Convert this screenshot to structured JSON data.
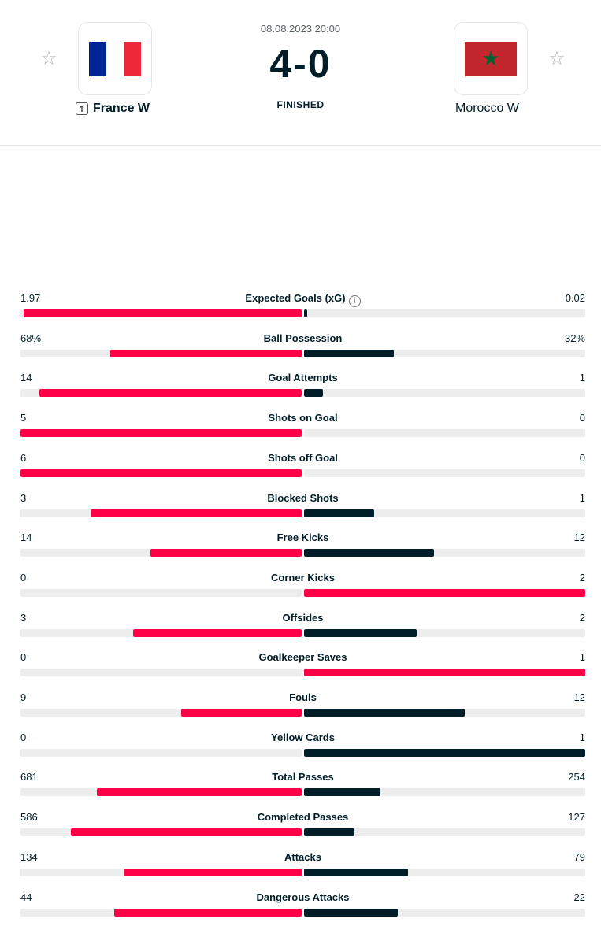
{
  "match": {
    "datetime": "08.08.2023 20:00",
    "score": "4-0",
    "status": "FINISHED",
    "home": {
      "name": "France W",
      "flag": "france-flag",
      "favorite_icon": "star-icon",
      "advance_icon": "arrow-up-icon"
    },
    "away": {
      "name": "Morocco W",
      "flag": "morocco-flag",
      "favorite_icon": "star-icon"
    }
  },
  "colors": {
    "winner": "#ff0046",
    "loser": "#001e28",
    "track": "#ededed"
  },
  "stats": [
    {
      "name": "Expected Goals (xG)",
      "home": "1.97",
      "away": "0.02",
      "info": true
    },
    {
      "name": "Ball Possession",
      "home": "68%",
      "away": "32%"
    },
    {
      "name": "Goal Attempts",
      "home": "14",
      "away": "1"
    },
    {
      "name": "Shots on Goal",
      "home": "5",
      "away": "0"
    },
    {
      "name": "Shots off Goal",
      "home": "6",
      "away": "0"
    },
    {
      "name": "Blocked Shots",
      "home": "3",
      "away": "1"
    },
    {
      "name": "Free Kicks",
      "home": "14",
      "away": "12"
    },
    {
      "name": "Corner Kicks",
      "home": "0",
      "away": "2"
    },
    {
      "name": "Offsides",
      "home": "3",
      "away": "2"
    },
    {
      "name": "Goalkeeper Saves",
      "home": "0",
      "away": "1"
    },
    {
      "name": "Fouls",
      "home": "9",
      "away": "12",
      "lower_is_better": true
    },
    {
      "name": "Yellow Cards",
      "home": "0",
      "away": "1",
      "lower_is_better": true
    },
    {
      "name": "Total Passes",
      "home": "681",
      "away": "254"
    },
    {
      "name": "Completed Passes",
      "home": "586",
      "away": "127"
    },
    {
      "name": "Attacks",
      "home": "134",
      "away": "79"
    },
    {
      "name": "Dangerous Attacks",
      "home": "44",
      "away": "22"
    }
  ]
}
